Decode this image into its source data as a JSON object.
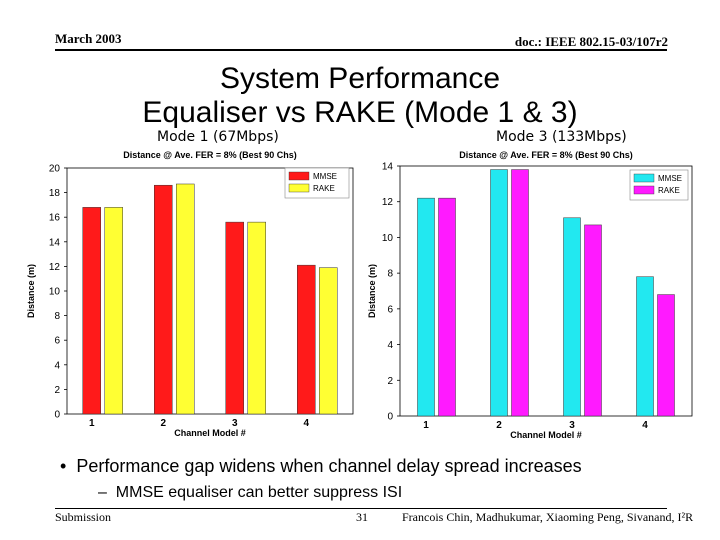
{
  "header": {
    "date": "March 2003",
    "doc": "doc.: IEEE 802.15-03/107r2"
  },
  "slide": {
    "title_line1": "System Performance",
    "title_line2": "Equaliser vs RAKE (Mode 1 & 3)",
    "mode1_label": "Mode 1 (67Mbps)",
    "mode3_label": "Mode 3 (133Mbps)",
    "bullet": "Performance gap widens when channel delay spread increases",
    "sub_bullet": "MMSE equaliser can better suppress ISI"
  },
  "footer": {
    "left": "Submission",
    "page": "31",
    "right": "Francois Chin, Madhukumar, Xiaoming Peng, Sivanand, I²R"
  },
  "chart_data": [
    {
      "type": "bar",
      "title": "Distance @ Ave. FER = 8% (Best 90 Chs)",
      "xlabel": "Channel Model #",
      "ylabel": "Distance (m)",
      "categories": [
        "1",
        "2",
        "3",
        "4"
      ],
      "ylim": [
        0,
        20
      ],
      "yticks": [
        0,
        2,
        4,
        6,
        8,
        10,
        12,
        14,
        16,
        18,
        20
      ],
      "legend_position": "top-right",
      "grid": false,
      "background": "#ffffff",
      "series": [
        {
          "name": "MMSE",
          "color": "#ff1a1a",
          "values": [
            16.8,
            18.6,
            15.6,
            12.1
          ]
        },
        {
          "name": "RAKE",
          "color": "#ffff33",
          "values": [
            16.8,
            18.7,
            15.6,
            11.9
          ]
        }
      ]
    },
    {
      "type": "bar",
      "title": "Distance @ Ave. FER = 8% (Best 90 Chs)",
      "xlabel": "Channel Model #",
      "ylabel": "Distance (m)",
      "categories": [
        "1",
        "2",
        "3",
        "4"
      ],
      "ylim": [
        0,
        14
      ],
      "yticks": [
        0,
        2,
        4,
        6,
        8,
        10,
        12,
        14
      ],
      "legend_position": "top-right",
      "grid": false,
      "background": "#ffffff",
      "series": [
        {
          "name": "MMSE",
          "color": "#22e8f0",
          "values": [
            12.2,
            13.8,
            11.1,
            7.8
          ]
        },
        {
          "name": "RAKE",
          "color": "#ff1aff",
          "values": [
            12.2,
            13.8,
            10.7,
            6.8
          ]
        }
      ]
    }
  ]
}
